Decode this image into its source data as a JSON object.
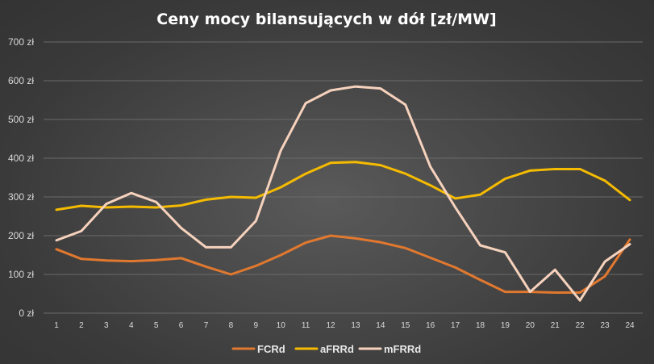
{
  "chart_data": {
    "type": "line",
    "title": "Ceny mocy bilansujących w dół [zł/MW]",
    "xlabel": "",
    "ylabel": "",
    "x": [
      1,
      2,
      3,
      4,
      5,
      6,
      7,
      8,
      9,
      10,
      11,
      12,
      13,
      14,
      15,
      16,
      17,
      18,
      19,
      20,
      21,
      22,
      23,
      24
    ],
    "ylim": [
      0,
      700
    ],
    "yticks": [
      0,
      100,
      200,
      300,
      400,
      500,
      600,
      700
    ],
    "ytick_labels": [
      "0 zł",
      "100 zł",
      "200 zł",
      "300 zł",
      "400 zł",
      "500 zł",
      "600 zł",
      "700 zł"
    ],
    "grid": true,
    "legend": "bottom-center",
    "series": [
      {
        "name": "FCRd",
        "color": "#e0782f",
        "values": [
          165,
          140,
          136,
          134,
          137,
          142,
          120,
          100,
          122,
          150,
          182,
          200,
          193,
          183,
          168,
          143,
          118,
          86,
          55,
          55,
          53,
          53,
          95,
          190
        ]
      },
      {
        "name": "aFRRd",
        "color": "#f5bb00",
        "values": [
          267,
          277,
          273,
          275,
          273,
          278,
          293,
          300,
          298,
          325,
          360,
          388,
          390,
          382,
          360,
          330,
          296,
          306,
          347,
          368,
          372,
          372,
          342,
          292
        ]
      },
      {
        "name": "mFRRd",
        "color": "#f6d2bd",
        "values": [
          188,
          212,
          282,
          310,
          287,
          220,
          170,
          170,
          238,
          420,
          542,
          575,
          585,
          580,
          538,
          378,
          273,
          175,
          157,
          55,
          112,
          33,
          133,
          178
        ]
      }
    ]
  }
}
